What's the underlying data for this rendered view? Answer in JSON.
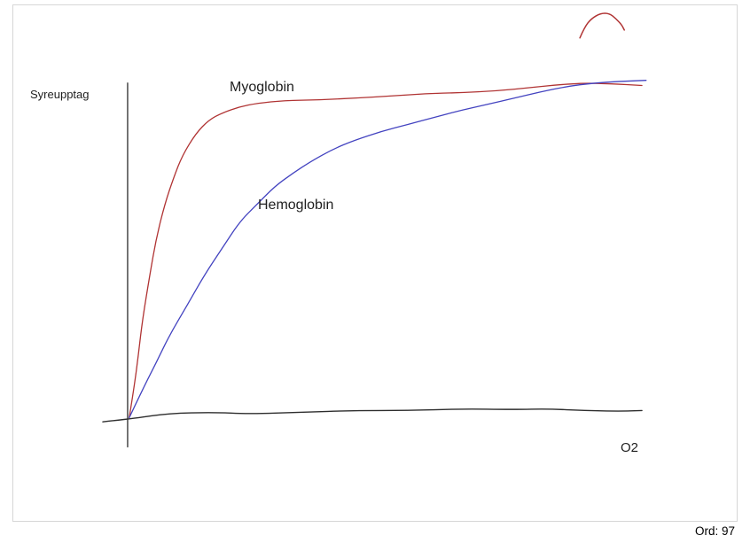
{
  "canvas": {
    "border_color": "#d6d6d6",
    "background": "#ffffff"
  },
  "status": {
    "word_count": "Ord: 97"
  },
  "chart_data": {
    "type": "line",
    "title": "",
    "xlabel": "O2",
    "ylabel": "Syreupptag",
    "x_range": [
      0,
      100
    ],
    "y_range": [
      0,
      100
    ],
    "grid": false,
    "legend": "inline-labels",
    "style": "hand-drawn",
    "series": [
      {
        "name": "Myoglobin",
        "color": "#b03333",
        "shape": "hyperbolic",
        "points": [
          [
            0.3,
            1.5
          ],
          [
            1.2,
            9.8
          ],
          [
            2.1,
            20.1
          ],
          [
            2.9,
            30.4
          ],
          [
            4.3,
            43.3
          ],
          [
            5.5,
            53.6
          ],
          [
            7.2,
            63.9
          ],
          [
            8.9,
            71.6
          ],
          [
            10.6,
            78.1
          ],
          [
            13.2,
            84.5
          ],
          [
            15.7,
            88.4
          ],
          [
            18.3,
            90.5
          ],
          [
            21.7,
            92.3
          ],
          [
            25.1,
            93.3
          ],
          [
            30.3,
            94.1
          ],
          [
            37.1,
            94.3
          ],
          [
            43.9,
            94.8
          ],
          [
            50.8,
            95.4
          ],
          [
            57.6,
            96.1
          ],
          [
            64.4,
            96.4
          ],
          [
            71.3,
            96.9
          ],
          [
            78.1,
            97.9
          ],
          [
            83.2,
            98.7
          ],
          [
            88.4,
            99.2
          ],
          [
            93.5,
            99.0
          ],
          [
            99.5,
            98.5
          ]
        ]
      },
      {
        "name": "Hemoglobin",
        "color": "#4343c0",
        "shape": "sigmoidal",
        "points": [
          [
            0.3,
            1.5
          ],
          [
            2.9,
            9.8
          ],
          [
            5.5,
            17.5
          ],
          [
            8.0,
            25.3
          ],
          [
            11.5,
            34.3
          ],
          [
            14.9,
            43.3
          ],
          [
            18.3,
            51.0
          ],
          [
            21.7,
            58.8
          ],
          [
            25.1,
            63.9
          ],
          [
            28.5,
            69.1
          ],
          [
            32.0,
            72.9
          ],
          [
            35.4,
            76.3
          ],
          [
            39.7,
            79.9
          ],
          [
            43.9,
            82.5
          ],
          [
            49.1,
            85.1
          ],
          [
            54.2,
            87.1
          ],
          [
            59.3,
            89.2
          ],
          [
            64.4,
            91.2
          ],
          [
            69.6,
            93.0
          ],
          [
            74.7,
            94.8
          ],
          [
            79.8,
            96.6
          ],
          [
            84.9,
            98.2
          ],
          [
            90.1,
            99.2
          ],
          [
            95.2,
            99.7
          ],
          [
            100.3,
            100.0
          ]
        ]
      }
    ],
    "axis_strokes": [
      {
        "name": "y-axis-line",
        "color": "#3a3a3a",
        "points": [
          [
            0,
            -7.0
          ],
          [
            0,
            99.2
          ]
        ]
      },
      {
        "name": "x-axis-line",
        "color": "#2d2d2d",
        "points": [
          [
            -4.8,
            0.3
          ],
          [
            1.2,
            1.3
          ],
          [
            8.0,
            2.8
          ],
          [
            16.6,
            3.1
          ],
          [
            23.4,
            2.6
          ],
          [
            33.7,
            3.1
          ],
          [
            43.9,
            3.6
          ],
          [
            54.2,
            3.6
          ],
          [
            64.4,
            4.1
          ],
          [
            74.7,
            3.9
          ],
          [
            81.5,
            4.1
          ],
          [
            88.4,
            3.6
          ],
          [
            95.2,
            3.4
          ],
          [
            99.5,
            3.6
          ]
        ]
      }
    ],
    "stray_marks": [
      {
        "name": "red-scribble-top-right",
        "color": "#b03333",
        "points": [
          [
            87.5,
            112.4
          ],
          [
            88.4,
            115.5
          ],
          [
            89.7,
            118.0
          ],
          [
            91.5,
            119.6
          ],
          [
            93.2,
            119.6
          ],
          [
            94.5,
            118.0
          ],
          [
            95.6,
            116.2
          ],
          [
            96.1,
            114.7
          ]
        ]
      }
    ]
  }
}
